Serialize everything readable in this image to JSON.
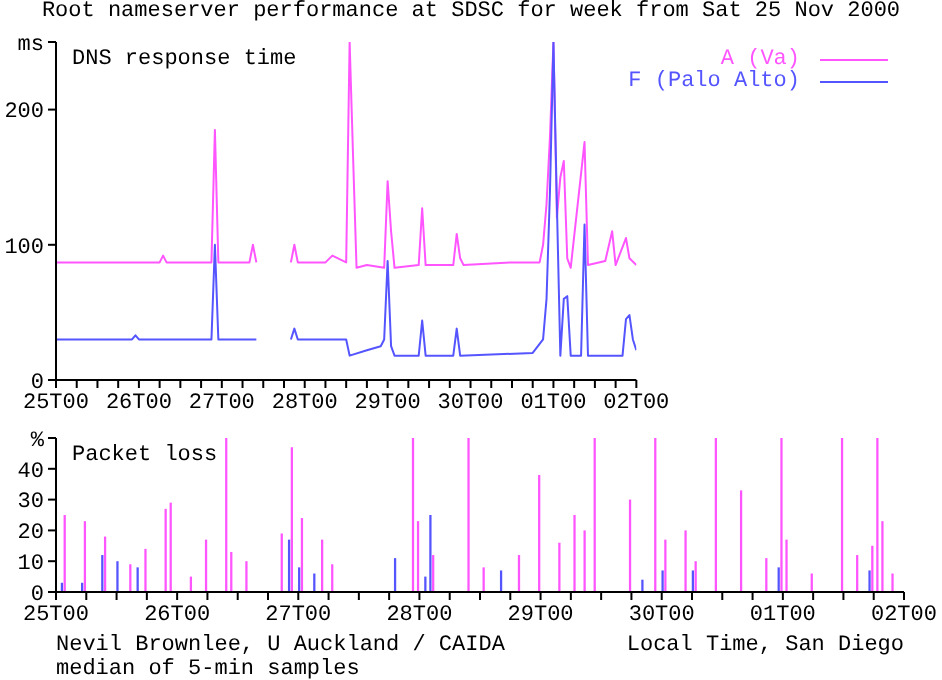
{
  "chart_data": [
    {
      "type": "line",
      "title": "Root nameserver performance at SDSC for week from Sat 25 Nov 2000",
      "subtitle": "DNS response time",
      "legend": "top right",
      "marker": "none",
      "xlim": [
        "2000-11-25T00:00",
        "2000-12-02T00:00"
      ],
      "xticks": [
        {
          "value": "2000-11-25T00:00",
          "label": "25T00"
        },
        {
          "value": "2000-11-25T06:00",
          "label": null
        },
        {
          "value": "2000-11-25T12:00",
          "label": null
        },
        {
          "value": "2000-11-25T18:00",
          "label": null
        },
        {
          "value": "2000-11-26T00:00",
          "label": "26T00"
        },
        {
          "value": "2000-11-26T06:00",
          "label": null
        },
        {
          "value": "2000-11-26T12:00",
          "label": null
        },
        {
          "value": "2000-11-26T18:00",
          "label": null
        },
        {
          "value": "2000-11-27T00:00",
          "label": "27T00"
        },
        {
          "value": "2000-11-27T06:00",
          "label": null
        },
        {
          "value": "2000-11-27T12:00",
          "label": null
        },
        {
          "value": "2000-11-27T18:00",
          "label": null
        },
        {
          "value": "2000-11-28T00:00",
          "label": "28T00"
        },
        {
          "value": "2000-11-28T06:00",
          "label": null
        },
        {
          "value": "2000-11-28T12:00",
          "label": null
        },
        {
          "value": "2000-11-28T18:00",
          "label": null
        },
        {
          "value": "2000-11-29T00:00",
          "label": "29T00"
        },
        {
          "value": "2000-11-29T06:00",
          "label": null
        },
        {
          "value": "2000-11-29T12:00",
          "label": null
        },
        {
          "value": "2000-11-29T18:00",
          "label": null
        },
        {
          "value": "2000-11-30T00:00",
          "label": "30T00"
        },
        {
          "value": "2000-11-30T06:00",
          "label": null
        },
        {
          "value": "2000-11-30T12:00",
          "label": null
        },
        {
          "value": "2000-11-30T18:00",
          "label": null
        },
        {
          "value": "2000-12-01T00:00",
          "label": "01T00"
        },
        {
          "value": "2000-12-01T06:00",
          "label": null
        },
        {
          "value": "2000-12-01T12:00",
          "label": null
        },
        {
          "value": "2000-12-01T18:00",
          "label": null
        },
        {
          "value": "2000-12-02T00:00",
          "label": "02T00"
        }
      ],
      "ylim": [
        0,
        250
      ],
      "yticks": [
        0,
        100,
        200,
        {
          "value": 250,
          "label": "ms"
        }
      ],
      "series": [
        {
          "name": "A (Va)",
          "color": "#ff55ff",
          "x": [
            "2000-11-25T00:00",
            "2000-11-26T06:00",
            "2000-11-26T07:00",
            "2000-11-26T08:00",
            "2000-11-26T21:00",
            "2000-11-26T22:00",
            "2000-11-26T23:00",
            "2000-11-27T08:00",
            "2000-11-27T09:00",
            "2000-11-27T10:00",
            "2000-11-27T11:00",
            "2000-11-27T20:00",
            "2000-11-27T21:00",
            "2000-11-27T22:00",
            "2000-11-28T06:00",
            "2000-11-28T08:00",
            "2000-11-28T12:00",
            "2000-11-28T13:00",
            "2000-11-28T14:00",
            "2000-11-28T15:00",
            "2000-11-28T18:00",
            "2000-11-28T23:00",
            "2000-11-29T00:00",
            "2000-11-29T01:00",
            "2000-11-29T02:00",
            "2000-11-29T09:00",
            "2000-11-29T10:00",
            "2000-11-29T11:00",
            "2000-11-29T19:00",
            "2000-11-29T20:00",
            "2000-11-29T21:00",
            "2000-11-29T22:00",
            "2000-11-30T12:00",
            "2000-11-30T20:00",
            "2000-11-30T21:00",
            "2000-11-30T22:00",
            "2000-11-30T23:00",
            "2000-12-01T00:00",
            "2000-12-01T01:00",
            "2000-12-01T02:00",
            "2000-12-01T03:00",
            "2000-12-01T04:00",
            "2000-12-01T05:00",
            "2000-12-01T09:00",
            "2000-12-01T10:00",
            "2000-12-01T15:00",
            "2000-12-01T17:00",
            "2000-12-01T18:00",
            "2000-12-01T21:00",
            "2000-12-01T22:00",
            "2000-12-02T00:00"
          ],
          "values": [
            87,
            87,
            92,
            87,
            87,
            185,
            87,
            87,
            100,
            87,
            null,
            87,
            100,
            87,
            87,
            92,
            87,
            250,
            165,
            83,
            85,
            83,
            147,
            110,
            83,
            85,
            127,
            85,
            85,
            108,
            90,
            85,
            87,
            87,
            100,
            130,
            180,
            250,
            120,
            150,
            162,
            90,
            83,
            176,
            85,
            88,
            110,
            85,
            105,
            90,
            85
          ]
        },
        {
          "name": "F (Palo Alto)",
          "color": "#5555ff",
          "x": [
            "2000-11-25T00:00",
            "2000-11-25T22:00",
            "2000-11-25T23:00",
            "2000-11-26T00:00",
            "2000-11-26T21:00",
            "2000-11-26T22:00",
            "2000-11-26T23:00",
            "2000-11-27T10:00",
            "2000-11-27T11:00",
            "2000-11-27T20:00",
            "2000-11-27T21:00",
            "2000-11-27T22:00",
            "2000-11-28T12:00",
            "2000-11-28T13:00",
            "2000-11-28T18:00",
            "2000-11-28T22:00",
            "2000-11-28T23:00",
            "2000-11-29T00:00",
            "2000-11-29T01:00",
            "2000-11-29T02:00",
            "2000-11-29T09:00",
            "2000-11-29T10:00",
            "2000-11-29T11:00",
            "2000-11-29T19:00",
            "2000-11-29T20:00",
            "2000-11-29T21:00",
            "2000-11-30T18:00",
            "2000-11-30T21:00",
            "2000-11-30T22:00",
            "2000-11-30T23:00",
            "2000-12-01T00:00",
            "2000-12-01T01:00",
            "2000-12-01T02:00",
            "2000-12-01T03:00",
            "2000-12-01T04:00",
            "2000-12-01T05:00",
            "2000-12-01T08:00",
            "2000-12-01T09:00",
            "2000-12-01T10:00",
            "2000-12-01T20:00",
            "2000-12-01T21:00",
            "2000-12-01T22:00",
            "2000-12-01T23:00",
            "2000-12-02T00:00"
          ],
          "values": [
            30,
            30,
            33,
            30,
            30,
            100,
            30,
            30,
            null,
            30,
            38,
            30,
            30,
            18,
            22,
            25,
            30,
            88,
            25,
            18,
            18,
            44,
            18,
            18,
            38,
            18,
            20,
            30,
            60,
            140,
            250,
            130,
            18,
            60,
            62,
            18,
            18,
            115,
            18,
            18,
            45,
            48,
            30,
            22
          ]
        }
      ]
    },
    {
      "type": "bar",
      "subtitle": "Packet loss",
      "xlabel": "Local Time, San Diego",
      "annotations": [
        "Nevil Brownlee, U Auckland / CAIDA",
        "median of 5-min samples"
      ],
      "xlim": [
        "2000-11-25T00:00",
        "2000-12-02T00:00"
      ],
      "xticks": [
        {
          "value": "2000-11-25T00:00",
          "label": "25T00"
        },
        {
          "value": "2000-11-25T06:00",
          "label": null
        },
        {
          "value": "2000-11-25T12:00",
          "label": null
        },
        {
          "value": "2000-11-25T18:00",
          "label": null
        },
        {
          "value": "2000-11-26T00:00",
          "label": "26T00"
        },
        {
          "value": "2000-11-26T06:00",
          "label": null
        },
        {
          "value": "2000-11-26T12:00",
          "label": null
        },
        {
          "value": "2000-11-26T18:00",
          "label": null
        },
        {
          "value": "2000-11-27T00:00",
          "label": "27T00"
        },
        {
          "value": "2000-11-27T06:00",
          "label": null
        },
        {
          "value": "2000-11-27T12:00",
          "label": null
        },
        {
          "value": "2000-11-27T18:00",
          "label": null
        },
        {
          "value": "2000-11-28T00:00",
          "label": "28T00"
        },
        {
          "value": "2000-11-28T06:00",
          "label": null
        },
        {
          "value": "2000-11-28T12:00",
          "label": null
        },
        {
          "value": "2000-11-28T18:00",
          "label": null
        },
        {
          "value": "2000-11-29T00:00",
          "label": "29T00"
        },
        {
          "value": "2000-11-29T06:00",
          "label": null
        },
        {
          "value": "2000-11-29T12:00",
          "label": null
        },
        {
          "value": "2000-11-29T18:00",
          "label": null
        },
        {
          "value": "2000-11-30T00:00",
          "label": "30T00"
        },
        {
          "value": "2000-11-30T06:00",
          "label": null
        },
        {
          "value": "2000-11-30T12:00",
          "label": null
        },
        {
          "value": "2000-11-30T18:00",
          "label": null
        },
        {
          "value": "2000-12-01T00:00",
          "label": "01T00"
        },
        {
          "value": "2000-12-01T06:00",
          "label": null
        },
        {
          "value": "2000-12-01T12:00",
          "label": null
        },
        {
          "value": "2000-12-01T18:00",
          "label": null
        },
        {
          "value": "2000-12-02T00:00",
          "label": "02T00"
        }
      ],
      "ylim": [
        0,
        50
      ],
      "yticks": [
        0,
        10,
        20,
        30,
        40,
        {
          "value": 50,
          "label": "%"
        }
      ],
      "series": [
        {
          "color": "#ff55ff",
          "x": [
            "2000-11-25T02:00",
            "2000-11-25T06:00",
            "2000-11-25T10:00",
            "2000-11-25T15:00",
            "2000-11-25T18:00",
            "2000-11-25T22:00",
            "2000-11-25T23:00",
            "2000-11-26T03:00",
            "2000-11-26T06:00",
            "2000-11-26T10:00",
            "2000-11-26T11:00",
            "2000-11-26T14:00",
            "2000-11-26T21:00",
            "2000-11-26T23:00",
            "2000-11-27T01:00",
            "2000-11-27T05:00",
            "2000-11-27T07:00",
            "2000-11-27T23:00",
            "2000-11-28T00:00",
            "2000-11-28T03:00",
            "2000-11-28T10:00",
            "2000-11-28T13:00",
            "2000-11-28T20:00",
            "2000-11-29T00:00",
            "2000-11-29T04:00",
            "2000-11-29T07:00",
            "2000-11-29T09:00",
            "2000-11-29T11:00",
            "2000-11-29T18:00",
            "2000-11-29T23:00",
            "2000-11-30T01:00",
            "2000-11-30T05:00",
            "2000-11-30T07:00",
            "2000-11-30T11:00",
            "2000-11-30T16:00",
            "2000-11-30T21:00",
            "2000-12-01T00:00",
            "2000-12-01T01:00",
            "2000-12-01T06:00",
            "2000-12-01T12:00",
            "2000-12-01T15:00",
            "2000-12-01T18:00",
            "2000-12-01T19:00",
            "2000-12-01T20:00",
            "2000-12-01T22:00"
          ],
          "values": [
            25,
            23,
            18,
            9,
            14,
            27,
            29,
            5,
            17,
            50,
            13,
            10,
            19,
            47,
            24,
            17,
            9,
            50,
            23,
            12,
            50,
            8,
            12,
            38,
            16,
            25,
            20,
            50,
            30,
            50,
            17,
            20,
            10,
            50,
            33,
            11,
            50,
            17,
            6,
            50,
            12,
            15,
            50,
            23,
            6
          ]
        },
        {
          "color": "#5555ff",
          "x": [
            "2000-11-25T01:00",
            "2000-11-25T05:00",
            "2000-11-25T09:00",
            "2000-11-25T12:00",
            "2000-11-25T16:00",
            "2000-11-26T22:00",
            "2000-11-27T00:00",
            "2000-11-27T03:00",
            "2000-11-27T19:00",
            "2000-11-28T01:00",
            "2000-11-28T02:00",
            "2000-11-28T16:00",
            "2000-11-29T20:00",
            "2000-11-30T00:00",
            "2000-11-30T06:00",
            "2000-11-30T23:00",
            "2000-12-01T17:00"
          ],
          "values": [
            3,
            3,
            12,
            10,
            8,
            17,
            8,
            6,
            11,
            5,
            25,
            7,
            4,
            7,
            7,
            8,
            7
          ]
        }
      ]
    }
  ]
}
